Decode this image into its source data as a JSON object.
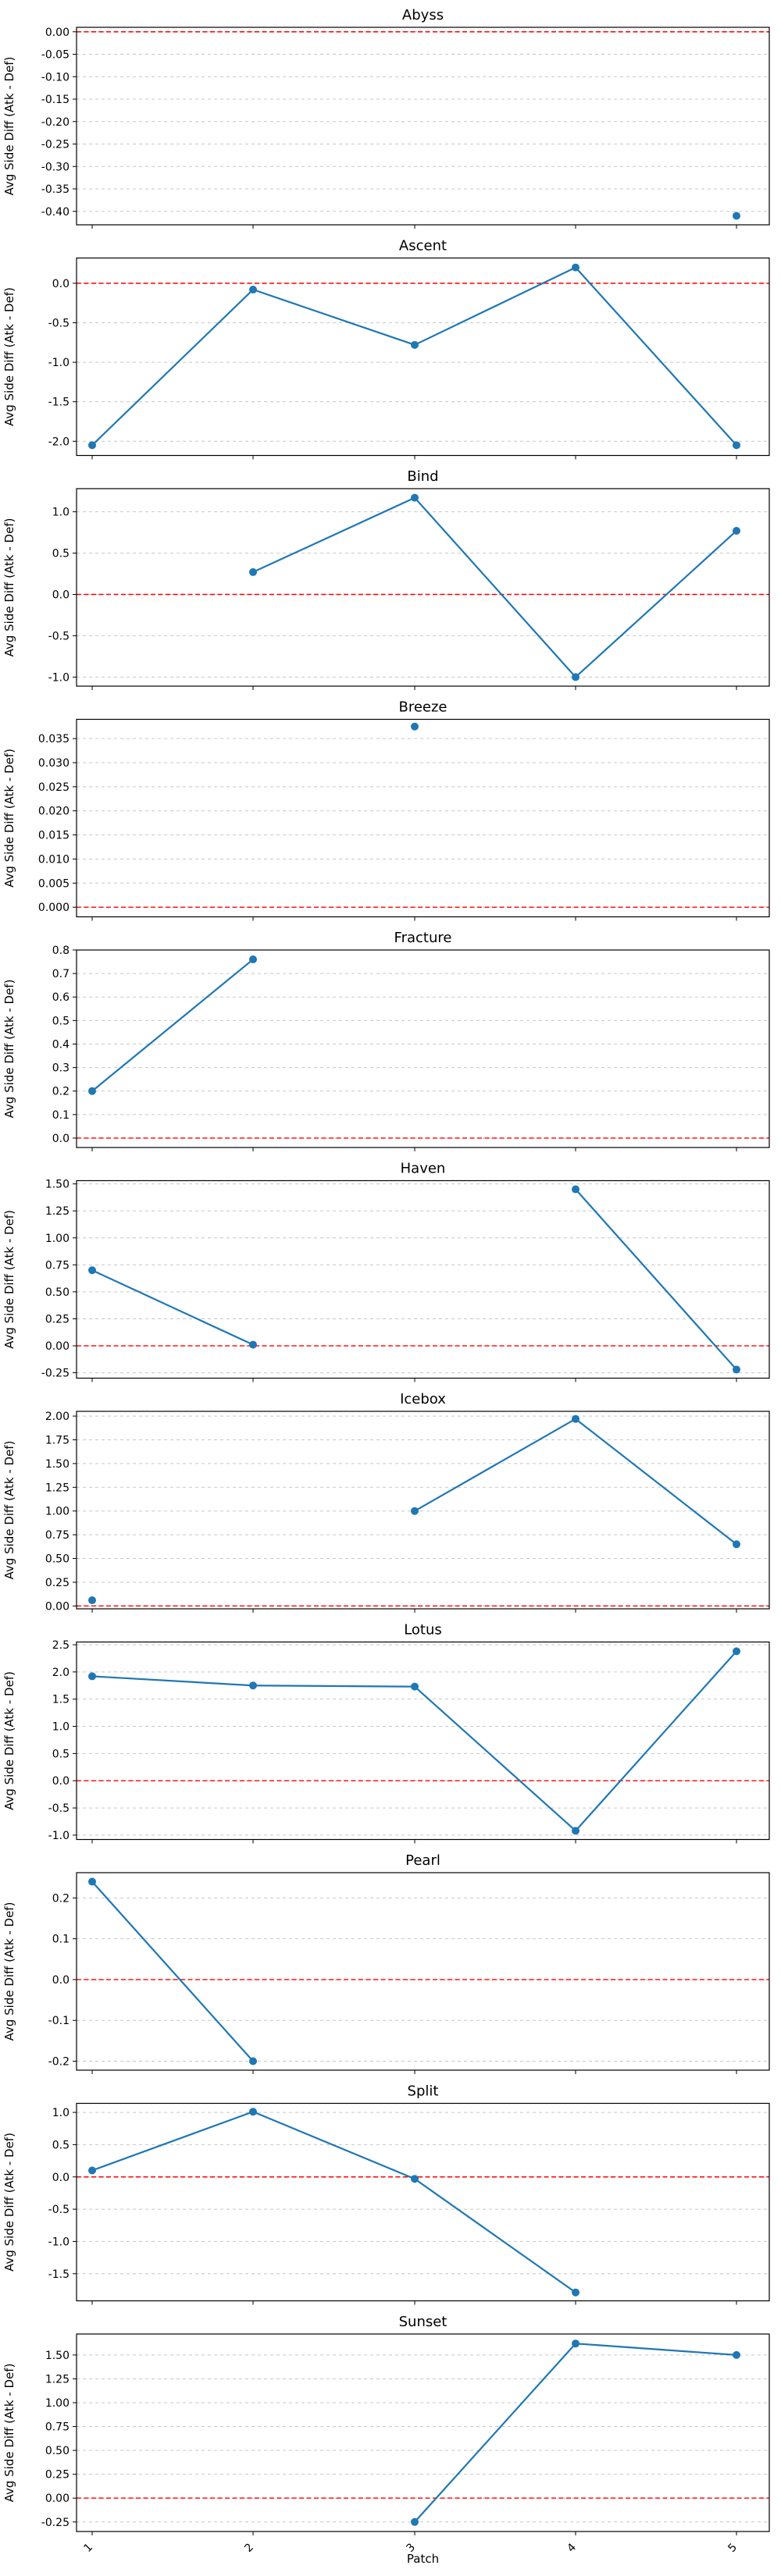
{
  "chart_data": {
    "type": "line",
    "x_categories": [
      "1",
      "2",
      "3",
      "4",
      "5"
    ],
    "xlabel": "Patch",
    "ylabel": "Avg Side Diff (Atk - Def)",
    "reference_line": {
      "y": 0,
      "color": "#ff0000",
      "style": "dashed"
    },
    "grid": "y-axis, dashed",
    "series_color": "#1f77b4",
    "panels": [
      {
        "title": "Abyss",
        "ylim": [
          -0.43,
          0.01
        ],
        "yticks": [
          "0.00",
          "-0.05",
          "-0.10",
          "-0.15",
          "-0.20",
          "-0.25",
          "-0.30",
          "-0.35",
          "-0.40"
        ],
        "ytick_values": [
          0,
          -0.05,
          -0.1,
          -0.15,
          -0.2,
          -0.25,
          -0.3,
          -0.35,
          -0.4
        ],
        "values": [
          null,
          null,
          null,
          null,
          -0.41
        ]
      },
      {
        "title": "Ascent",
        "ylim": [
          -2.18,
          0.32
        ],
        "yticks": [
          "0.0",
          "-0.5",
          "-1.0",
          "-1.5",
          "-2.0"
        ],
        "ytick_values": [
          0,
          -0.5,
          -1,
          -1.5,
          -2
        ],
        "values": [
          -2.05,
          -0.08,
          -0.78,
          0.2,
          -2.05
        ]
      },
      {
        "title": "Bind",
        "ylim": [
          -1.11,
          1.28
        ],
        "yticks": [
          "1.0",
          "0.5",
          "0.0",
          "-0.5",
          "-1.0"
        ],
        "ytick_values": [
          1,
          0.5,
          0,
          -0.5,
          -1
        ],
        "values": [
          null,
          0.27,
          1.17,
          -1.0,
          0.77
        ]
      },
      {
        "title": "Breeze",
        "ylim": [
          -0.002,
          0.039
        ],
        "yticks": [
          "0.035",
          "0.030",
          "0.025",
          "0.020",
          "0.015",
          "0.010",
          "0.005",
          "0.000"
        ],
        "ytick_values": [
          0.035,
          0.03,
          0.025,
          0.02,
          0.015,
          0.01,
          0.005,
          0
        ],
        "values": [
          null,
          null,
          0.0375,
          null,
          null
        ]
      },
      {
        "title": "Fracture",
        "ylim": [
          -0.04,
          0.8
        ],
        "yticks": [
          "0.8",
          "0.7",
          "0.6",
          "0.5",
          "0.4",
          "0.3",
          "0.2",
          "0.1",
          "0.0"
        ],
        "ytick_values": [
          0.8,
          0.7,
          0.6,
          0.5,
          0.4,
          0.3,
          0.2,
          0.1,
          0
        ],
        "values": [
          0.2,
          0.76,
          null,
          null,
          null
        ]
      },
      {
        "title": "Haven",
        "ylim": [
          -0.3,
          1.53
        ],
        "yticks": [
          "1.50",
          "1.25",
          "1.00",
          "0.75",
          "0.50",
          "0.25",
          "0.00",
          "-0.25"
        ],
        "ytick_values": [
          1.5,
          1.25,
          1,
          0.75,
          0.5,
          0.25,
          0,
          -0.25
        ],
        "values": [
          0.7,
          0.01,
          null,
          1.45,
          -0.22
        ]
      },
      {
        "title": "Icebox",
        "ylim": [
          -0.03,
          2.05
        ],
        "yticks": [
          "2.00",
          "1.75",
          "1.50",
          "1.25",
          "1.00",
          "0.75",
          "0.50",
          "0.25",
          "0.00"
        ],
        "ytick_values": [
          2,
          1.75,
          1.5,
          1.25,
          1,
          0.75,
          0.5,
          0.25,
          0
        ],
        "values": [
          0.06,
          null,
          1.0,
          1.97,
          0.65
        ]
      },
      {
        "title": "Lotus",
        "ylim": [
          -1.08,
          2.55
        ],
        "yticks": [
          "2.5",
          "2.0",
          "1.5",
          "1.0",
          "0.5",
          "0.0",
          "-0.5",
          "-1.0"
        ],
        "ytick_values": [
          2.5,
          2,
          1.5,
          1,
          0.5,
          0,
          -0.5,
          -1
        ],
        "values": [
          1.92,
          1.75,
          1.73,
          -0.92,
          2.38
        ]
      },
      {
        "title": "Pearl",
        "ylim": [
          -0.222,
          0.262
        ],
        "yticks": [
          "0.2",
          "0.1",
          "0.0",
          "-0.1",
          "-0.2"
        ],
        "ytick_values": [
          0.2,
          0.1,
          0,
          -0.1,
          -0.2
        ],
        "values": [
          0.24,
          -0.2,
          null,
          null,
          null
        ]
      },
      {
        "title": "Split",
        "ylim": [
          -1.92,
          1.14
        ],
        "yticks": [
          "1.0",
          "0.5",
          "0.0",
          "-0.5",
          "-1.0",
          "-1.5"
        ],
        "ytick_values": [
          1,
          0.5,
          0,
          -0.5,
          -1,
          -1.5
        ],
        "values": [
          0.1,
          1.01,
          -0.03,
          -1.79,
          null
        ]
      },
      {
        "title": "Sunset",
        "ylim": [
          -0.35,
          1.72
        ],
        "yticks": [
          "1.50",
          "1.25",
          "1.00",
          "0.75",
          "0.50",
          "0.25",
          "0.00",
          "-0.25"
        ],
        "ytick_values": [
          1.5,
          1.25,
          1,
          0.75,
          0.5,
          0.25,
          0,
          -0.25
        ],
        "values": [
          null,
          null,
          -0.25,
          1.62,
          1.5
        ]
      }
    ]
  }
}
